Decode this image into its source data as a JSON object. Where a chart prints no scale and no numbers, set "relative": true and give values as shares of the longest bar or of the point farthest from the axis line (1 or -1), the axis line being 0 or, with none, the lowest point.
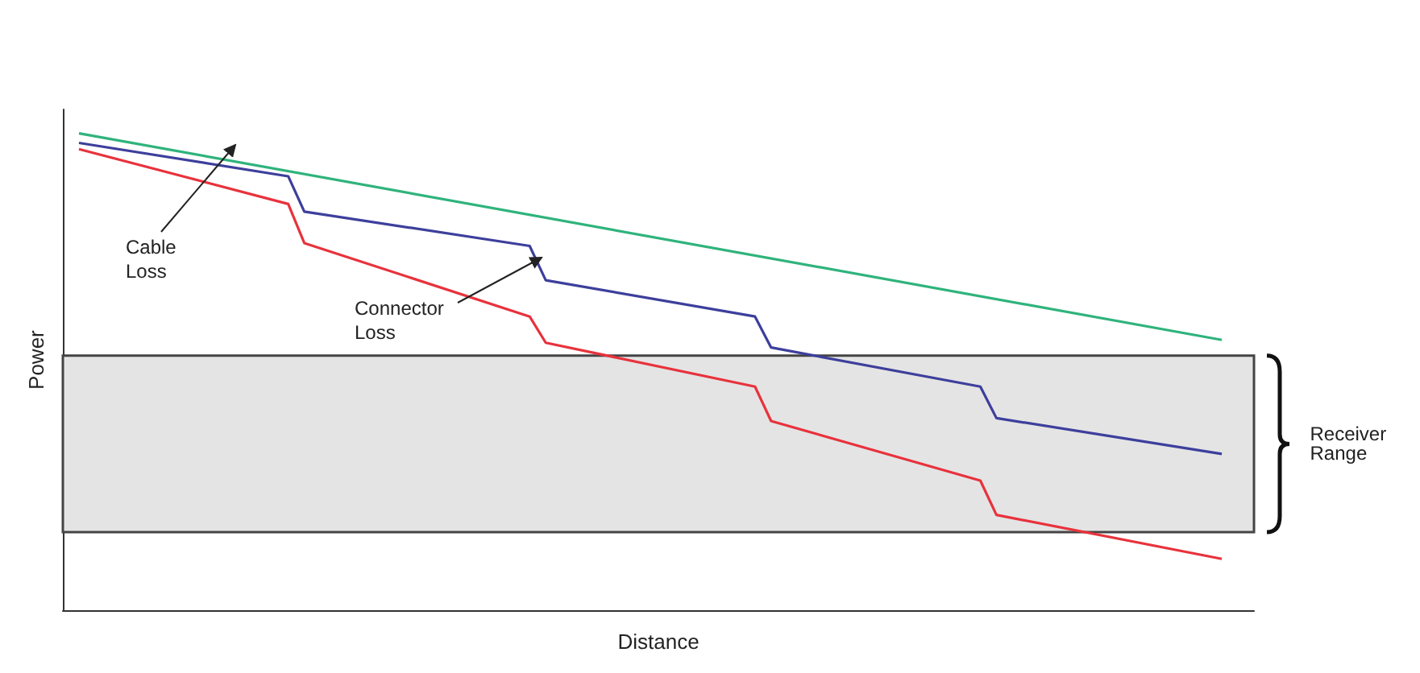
{
  "chart_data": {
    "type": "line",
    "relative": true,
    "xlabel": "Distance",
    "ylabel": "Power",
    "marker": "none",
    "line_style": "solid",
    "categories": [
      null,
      null,
      null,
      null,
      null,
      null,
      null,
      null,
      null,
      null,
      null,
      null,
      null,
      null,
      null,
      null,
      null,
      null,
      null,
      null,
      null,
      null,
      null,
      null,
      null,
      null,
      null,
      null,
      null,
      null,
      null,
      null,
      null,
      null,
      null,
      null,
      null,
      null,
      null,
      null,
      null,
      null,
      null,
      null,
      null,
      null,
      null,
      null,
      null,
      null,
      null,
      null,
      null,
      null,
      null,
      null,
      null,
      null,
      null,
      null,
      null,
      null,
      null,
      null,
      null,
      null,
      null,
      null,
      null,
      null,
      null,
      null,
      null,
      null,
      null
    ],
    "series": [
      {
        "color": "#2fb37c",
        "values": [
          null,
          1.0,
          null,
          null,
          null,
          null,
          null,
          null,
          null,
          null,
          null,
          null,
          null,
          null,
          null,
          null,
          null,
          null,
          null,
          null,
          null,
          null,
          null,
          null,
          null,
          null,
          null,
          null,
          null,
          null,
          null,
          null,
          null,
          null,
          null,
          null,
          null,
          null,
          null,
          null,
          null,
          null,
          null,
          null,
          null,
          null,
          null,
          null,
          null,
          null,
          null,
          null,
          null,
          null,
          null,
          null,
          null,
          null,
          null,
          null,
          null,
          null,
          null,
          null,
          null,
          null,
          null,
          null,
          null,
          null,
          null,
          null,
          0.567,
          null,
          null
        ]
      },
      {
        "color": "#3d3f9c",
        "values": [
          null,
          0.98,
          null,
          null,
          null,
          null,
          null,
          null,
          null,
          null,
          null,
          null,
          null,
          null,
          0.91,
          0.836,
          null,
          null,
          null,
          null,
          null,
          null,
          null,
          null,
          null,
          null,
          null,
          null,
          null,
          0.764,
          0.692,
          null,
          null,
          null,
          null,
          null,
          null,
          null,
          null,
          null,
          null,
          null,
          null,
          0.616,
          0.551,
          null,
          null,
          null,
          null,
          null,
          null,
          null,
          null,
          null,
          null,
          null,
          null,
          0.469,
          0.403,
          null,
          null,
          null,
          null,
          null,
          null,
          null,
          null,
          null,
          null,
          null,
          null,
          null,
          0.328,
          null,
          null
        ]
      },
      {
        "color": "#e8323c",
        "values": [
          null,
          0.967,
          null,
          null,
          null,
          null,
          null,
          null,
          null,
          null,
          null,
          null,
          null,
          null,
          0.852,
          0.77,
          null,
          null,
          null,
          null,
          null,
          null,
          null,
          null,
          null,
          null,
          null,
          null,
          null,
          0.616,
          0.561,
          null,
          null,
          null,
          null,
          null,
          null,
          null,
          null,
          null,
          null,
          null,
          null,
          0.469,
          0.397,
          null,
          null,
          null,
          null,
          null,
          null,
          null,
          null,
          null,
          null,
          null,
          null,
          0.272,
          0.2,
          null,
          null,
          null,
          null,
          null,
          null,
          null,
          null,
          null,
          null,
          null,
          null,
          null,
          0.108,
          null,
          null
        ]
      }
    ],
    "bands": [
      {
        "axis": "y",
        "from": 0.164,
        "to": 0.534,
        "label": "Receiver Range",
        "color": "#e4e4e4"
      }
    ],
    "annotations": [
      "Cable Loss",
      "Connector Loss"
    ]
  }
}
